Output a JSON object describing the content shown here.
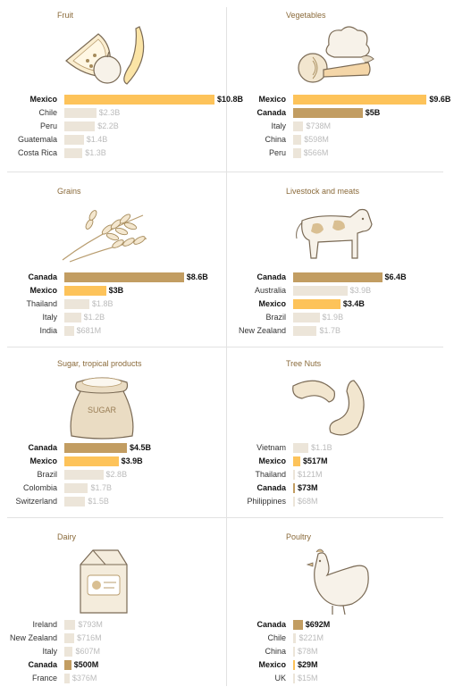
{
  "colors": {
    "mexico": "#fdc35a",
    "canada": "#c29d62",
    "other": "#ece5d9",
    "title": "#8a6a3a"
  },
  "chart_data": [
    {
      "type": "bar",
      "title": "Fruit",
      "unit": "USD",
      "categories": [
        "Mexico",
        "Chile",
        "Peru",
        "Guatemala",
        "Costa Rica"
      ],
      "values": [
        10.8,
        2.3,
        2.2,
        1.4,
        1.3
      ],
      "labels": [
        "$10.8B",
        "$2.3B",
        "$2.2B",
        "$1.4B",
        "$1.3B"
      ],
      "highlight": [
        "mexico",
        "other",
        "other",
        "other",
        "other"
      ],
      "icon": "fruit-icon"
    },
    {
      "type": "bar",
      "title": "Vegetables",
      "unit": "USD",
      "categories": [
        "Mexico",
        "Canada",
        "Italy",
        "China",
        "Peru"
      ],
      "values": [
        9.6,
        5.0,
        0.738,
        0.598,
        0.566
      ],
      "labels": [
        "$9.6B",
        "$5B",
        "$738M",
        "$598M",
        "$566M"
      ],
      "highlight": [
        "mexico",
        "canada",
        "other",
        "other",
        "other"
      ],
      "icon": "vegetables-icon"
    },
    {
      "type": "bar",
      "title": "Grains",
      "unit": "USD",
      "categories": [
        "Canada",
        "Mexico",
        "Thailand",
        "Italy",
        "India"
      ],
      "values": [
        8.6,
        3.0,
        1.8,
        1.2,
        0.681
      ],
      "labels": [
        "$8.6B",
        "$3B",
        "$1.8B",
        "$1.2B",
        "$681M"
      ],
      "highlight": [
        "canada",
        "mexico",
        "other",
        "other",
        "other"
      ],
      "icon": "wheat-icon"
    },
    {
      "type": "bar",
      "title": "Livestock and meats",
      "unit": "USD",
      "categories": [
        "Canada",
        "Australia",
        "Mexico",
        "Brazil",
        "New Zealand"
      ],
      "values": [
        6.4,
        3.9,
        3.4,
        1.9,
        1.7
      ],
      "labels": [
        "$6.4B",
        "$3.9B",
        "$3.4B",
        "$1.9B",
        "$1.7B"
      ],
      "highlight": [
        "canada",
        "other",
        "mexico",
        "other",
        "other"
      ],
      "icon": "cow-icon"
    },
    {
      "type": "bar",
      "title": "Sugar, tropical products",
      "unit": "USD",
      "categories": [
        "Canada",
        "Mexico",
        "Brazil",
        "Colombia",
        "Switzerland"
      ],
      "values": [
        4.5,
        3.9,
        2.8,
        1.7,
        1.5
      ],
      "labels": [
        "$4.5B",
        "$3.9B",
        "$2.8B",
        "$1.7B",
        "$1.5B"
      ],
      "highlight": [
        "canada",
        "mexico",
        "other",
        "other",
        "other"
      ],
      "icon": "sugar-sack-icon",
      "icon_text": "SUGAR"
    },
    {
      "type": "bar",
      "title": "Tree Nuts",
      "unit": "USD",
      "categories": [
        "Vietnam",
        "Mexico",
        "Thailand",
        "Canada",
        "Philippines"
      ],
      "values": [
        1.1,
        0.517,
        0.121,
        0.073,
        0.068
      ],
      "labels": [
        "$1.1B",
        "$517M",
        "$121M",
        "$73M",
        "$68M"
      ],
      "highlight": [
        "other",
        "mexico",
        "other",
        "canada",
        "other"
      ],
      "icon": "cashew-icon"
    },
    {
      "type": "bar",
      "title": "Dairy",
      "unit": "USD",
      "categories": [
        "Ireland",
        "New Zealand",
        "Italy",
        "Canada",
        "France"
      ],
      "values": [
        0.793,
        0.716,
        0.607,
        0.5,
        0.376
      ],
      "labels": [
        "$793M",
        "$716M",
        "$607M",
        "$500M",
        "$376M"
      ],
      "highlight": [
        "other",
        "other",
        "other",
        "canada",
        "other"
      ],
      "icon": "milk-carton-icon"
    },
    {
      "type": "bar",
      "title": "Poultry",
      "unit": "USD",
      "categories": [
        "Canada",
        "Chile",
        "China",
        "Mexico",
        "UK"
      ],
      "values": [
        0.692,
        0.221,
        0.078,
        0.029,
        0.015
      ],
      "labels": [
        "$692M",
        "$221M",
        "$78M",
        "$29M",
        "$15M"
      ],
      "highlight": [
        "canada",
        "other",
        "other",
        "mexico",
        "other"
      ],
      "icon": "chicken-icon"
    }
  ]
}
